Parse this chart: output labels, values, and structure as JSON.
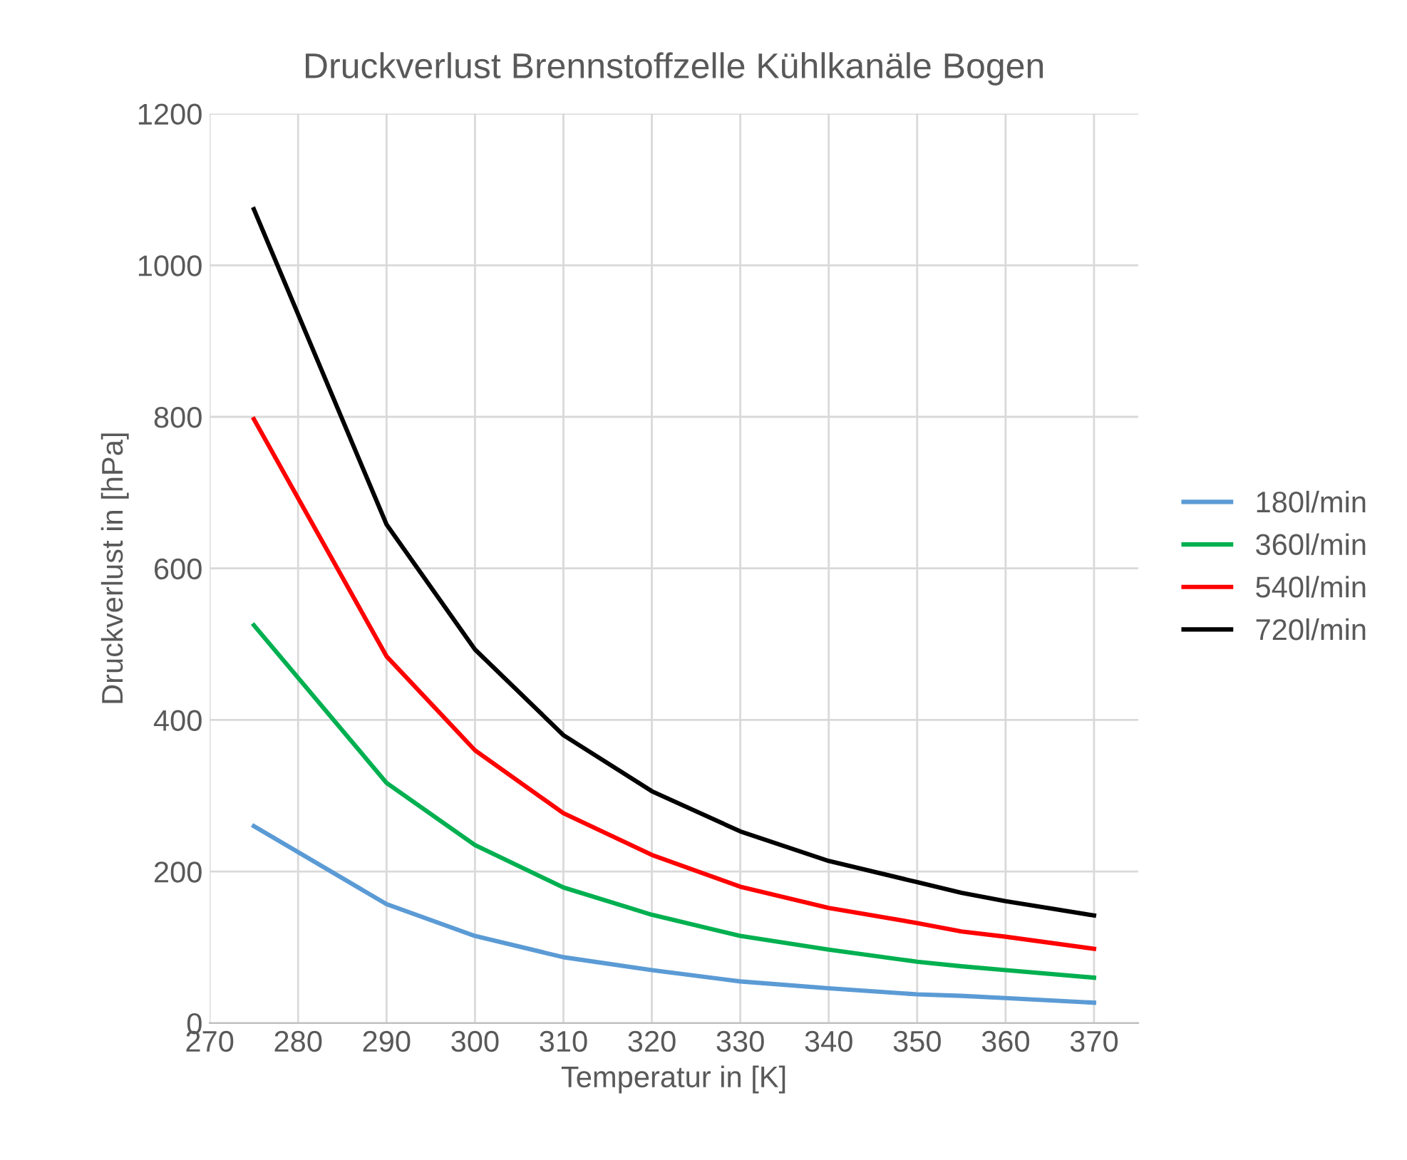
{
  "chart_data": {
    "type": "line",
    "title": "Druckverlust Brennstoffzelle Kühlkanäle Bogen",
    "xlabel": "Temperatur in [K]",
    "ylabel": "Druckverlust in [hPa]",
    "x": [
      275,
      290,
      300,
      310,
      320,
      330,
      340,
      350,
      355,
      360,
      370
    ],
    "series": [
      {
        "name": "180l/min",
        "color": "#5b9bd5",
        "values": [
          260,
          157,
          115,
          87,
          70,
          55,
          46,
          38,
          36,
          33,
          27
        ]
      },
      {
        "name": "360l/min",
        "color": "#00b050",
        "values": [
          525,
          317,
          235,
          179,
          143,
          115,
          97,
          81,
          75,
          70,
          60
        ]
      },
      {
        "name": "540l/min",
        "color": "#ff0000",
        "values": [
          797,
          484,
          360,
          277,
          222,
          180,
          152,
          132,
          121,
          114,
          98
        ]
      },
      {
        "name": "720l/min",
        "color": "#000000",
        "values": [
          1074,
          658,
          493,
          380,
          306,
          253,
          214,
          186,
          172,
          161,
          142
        ]
      }
    ],
    "xlim": [
      270,
      375
    ],
    "xticks": [
      270,
      280,
      290,
      300,
      310,
      320,
      330,
      340,
      350,
      360,
      370
    ],
    "ylim": [
      0,
      1200
    ],
    "yticks": [
      0,
      200,
      400,
      600,
      800,
      1000,
      1200
    ],
    "grid": true,
    "legend": "right",
    "marker": "none",
    "line_style": "solid"
  }
}
